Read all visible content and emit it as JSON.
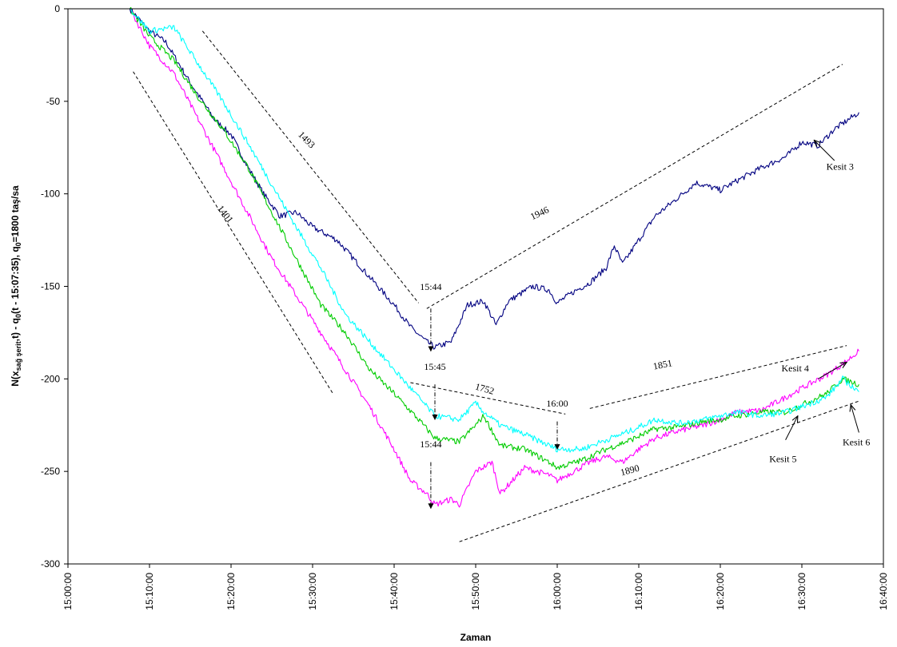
{
  "chart_data": {
    "type": "line",
    "title": "",
    "xlabel": "Zaman",
    "ylabel_parts": [
      "N(x",
      "sağ şerit",
      ",t) - q",
      "0",
      "(t - 15:07:35),  q",
      "0",
      "=1800 taş/sa"
    ],
    "xlim": [
      "15:00:00",
      "16:40:00"
    ],
    "ylim": [
      -300,
      0
    ],
    "x_ticks": [
      "15:00:00",
      "15:10:00",
      "15:20:00",
      "15:30:00",
      "15:40:00",
      "15:50:00",
      "16:00:00",
      "16:10:00",
      "16:20:00",
      "16:30:00",
      "16:40:00"
    ],
    "y_ticks": [
      0,
      -50,
      -100,
      -150,
      -200,
      -250,
      -300
    ],
    "grid": false,
    "series": [
      {
        "name": "Kesit 3",
        "color": "#000080",
        "x": [
          "15:07:35",
          "15:10:00",
          "15:12:00",
          "15:15:00",
          "15:18:00",
          "15:20:00",
          "15:22:00",
          "15:24:00",
          "15:26:00",
          "15:28:00",
          "15:30:00",
          "15:33:00",
          "15:36:00",
          "15:38:00",
          "15:40:00",
          "15:42:00",
          "15:44:00",
          "15:45:00",
          "15:47:00",
          "15:49:00",
          "15:51:00",
          "15:52:30",
          "15:54:00",
          "15:57:00",
          "15:59:00",
          "16:00:00",
          "16:02:00",
          "16:04:00",
          "16:06:00",
          "16:07:00",
          "16:08:00",
          "16:10:00",
          "16:12:00",
          "16:14:00",
          "16:17:00",
          "16:20:00",
          "16:22:00",
          "16:25:00",
          "16:28:00",
          "16:30:00",
          "16:32:00",
          "16:34:00",
          "16:35:00",
          "16:37:00"
        ],
        "y": [
          0,
          -12,
          -18,
          -40,
          -60,
          -68,
          -85,
          -100,
          -112,
          -110,
          -118,
          -125,
          -140,
          -150,
          -160,
          -172,
          -180,
          -183,
          -180,
          -160,
          -158,
          -171,
          -158,
          -150,
          -152,
          -159,
          -153,
          -148,
          -140,
          -128,
          -138,
          -125,
          -112,
          -105,
          -94,
          -98,
          -93,
          -86,
          -80,
          -72,
          -74,
          -65,
          -62,
          -56
        ]
      },
      {
        "name": "Kesit 4",
        "color": "#ff00ff",
        "x": [
          "15:07:35",
          "15:10:00",
          "15:13:00",
          "15:16:00",
          "15:19:00",
          "15:22:00",
          "15:25:00",
          "15:28:00",
          "15:31:00",
          "15:34:00",
          "15:37:00",
          "15:40:00",
          "15:42:00",
          "15:44:00",
          "15:45:00",
          "15:47:00",
          "15:48:00",
          "15:50:00",
          "15:52:00",
          "15:53:00",
          "15:56:00",
          "15:59:00",
          "16:00:00",
          "16:02:00",
          "16:04:00",
          "16:06:00",
          "16:08:00",
          "16:10:00",
          "16:12:00",
          "16:15:00",
          "16:18:00",
          "16:20:00",
          "16:22:00",
          "16:25:00",
          "16:28:00",
          "16:30:00",
          "16:33:00",
          "16:35:00",
          "16:37:00"
        ],
        "y": [
          0,
          -20,
          -35,
          -60,
          -85,
          -110,
          -135,
          -155,
          -175,
          -195,
          -215,
          -238,
          -255,
          -262,
          -268,
          -265,
          -268,
          -250,
          -245,
          -262,
          -248,
          -252,
          -255,
          -250,
          -245,
          -242,
          -245,
          -238,
          -232,
          -228,
          -225,
          -222,
          -218,
          -217,
          -210,
          -205,
          -198,
          -192,
          -185
        ]
      },
      {
        "name": "Kesit 5",
        "color": "#00cc00",
        "x": [
          "15:07:35",
          "15:10:00",
          "15:13:00",
          "15:16:00",
          "15:19:00",
          "15:22:00",
          "15:25:00",
          "15:28:00",
          "15:31:00",
          "15:34:00",
          "15:37:00",
          "15:40:00",
          "15:43:00",
          "15:45:00",
          "15:48:00",
          "15:50:00",
          "15:51:00",
          "15:53:00",
          "15:56:00",
          "15:59:00",
          "16:00:00",
          "16:03:00",
          "16:06:00",
          "16:09:00",
          "16:12:00",
          "16:15:00",
          "16:18:00",
          "16:20:00",
          "16:22:00",
          "16:25:00",
          "16:28:00",
          "16:30:00",
          "16:33:00",
          "16:35:00",
          "16:37:00"
        ],
        "y": [
          0,
          -15,
          -28,
          -48,
          -65,
          -85,
          -110,
          -135,
          -160,
          -175,
          -195,
          -208,
          -222,
          -232,
          -234,
          -225,
          -220,
          -236,
          -238,
          -245,
          -248,
          -244,
          -238,
          -233,
          -227,
          -226,
          -223,
          -222,
          -220,
          -218,
          -218,
          -214,
          -208,
          -200,
          -203
        ]
      },
      {
        "name": "Kesit 6",
        "color": "#00ffff",
        "x": [
          "15:07:35",
          "15:10:00",
          "15:13:00",
          "15:16:00",
          "15:19:00",
          "15:22:00",
          "15:25:00",
          "15:28:00",
          "15:31:00",
          "15:34:00",
          "15:37:00",
          "15:40:00",
          "15:43:00",
          "15:45:00",
          "15:48:00",
          "15:50:00",
          "15:51:00",
          "15:53:00",
          "15:56:00",
          "15:59:00",
          "16:00:00",
          "16:03:00",
          "16:06:00",
          "16:09:00",
          "16:12:00",
          "16:15:00",
          "16:18:00",
          "16:20:00",
          "16:22:00",
          "16:25:00",
          "16:28:00",
          "16:30:00",
          "16:33:00",
          "16:35:00",
          "16:37:00"
        ],
        "y": [
          0,
          -12,
          -10,
          -30,
          -50,
          -72,
          -95,
          -118,
          -140,
          -165,
          -180,
          -195,
          -210,
          -220,
          -222,
          -213,
          -218,
          -225,
          -230,
          -236,
          -238,
          -238,
          -233,
          -228,
          -222,
          -224,
          -222,
          -220,
          -218,
          -220,
          -218,
          -215,
          -210,
          -200,
          -207
        ]
      }
    ],
    "trend_lines": [
      {
        "label": "1493",
        "x1": "15:16:30",
        "y1": -12,
        "x2": "15:43:00",
        "y2": -159,
        "label_x": "15:29:00",
        "label_y": -72,
        "label_angle": 45
      },
      {
        "label": "1401",
        "x1": "15:08:00",
        "y1": -34,
        "x2": "15:32:30",
        "y2": -208,
        "label_x": "15:19:00",
        "label_y": -112,
        "label_angle": 52
      },
      {
        "label": "1946",
        "x1": "15:44:00",
        "y1": -162,
        "x2": "16:35:00",
        "y2": -30,
        "label_x": "15:58:00",
        "label_y": -112,
        "label_angle": -25
      },
      {
        "label": "1752",
        "x1": "15:42:00",
        "y1": -202,
        "x2": "16:01:00",
        "y2": -219,
        "label_x": "15:51:00",
        "label_y": -207,
        "label_angle": 16
      },
      {
        "label": "1851",
        "x1": "16:04:00",
        "y1": -216,
        "x2": "16:35:30",
        "y2": -182,
        "label_x": "16:13:00",
        "label_y": -194,
        "label_angle": -11
      },
      {
        "label": "1890",
        "x1": "15:48:00",
        "y1": -288,
        "x2": "16:37:00",
        "y2": -212,
        "label_x": "16:09:00",
        "label_y": -251,
        "label_angle": -15
      }
    ],
    "time_markers": [
      {
        "label": "15:44",
        "x": "15:44:30",
        "y_top": -162,
        "y_arrow": -185,
        "label_y": -152
      },
      {
        "label": "15:45",
        "x": "15:45:00",
        "y_top": -203,
        "y_arrow": -222,
        "label_y": -195
      },
      {
        "label": "16:00",
        "x": "16:00:00",
        "y_top": -223,
        "y_arrow": -238,
        "label_y": -215
      },
      {
        "label": "15:44",
        "x": "15:44:30",
        "y_top": -245,
        "y_arrow": -270,
        "label_y": -237
      }
    ],
    "callouts": [
      {
        "label": "Kesit 3",
        "text_x": "16:33:00",
        "text_y": -87,
        "x1": "16:34:00",
        "y1": -82,
        "x2": "16:31:30",
        "y2": -71
      },
      {
        "label": "Kesit 4",
        "text_x": "16:27:30",
        "text_y": -196,
        "x1": "16:32:00",
        "y1": -200,
        "x2": "16:35:30",
        "y2": -191
      },
      {
        "label": "Kesit 5",
        "text_x": "16:26:00",
        "text_y": -245,
        "x1": "16:28:00",
        "y1": -233,
        "x2": "16:29:30",
        "y2": -220
      },
      {
        "label": "Kesit 6",
        "text_x": "16:35:00",
        "text_y": -236,
        "x1": "16:37:00",
        "y1": -229,
        "x2": "16:36:00",
        "y2": -214
      }
    ]
  }
}
